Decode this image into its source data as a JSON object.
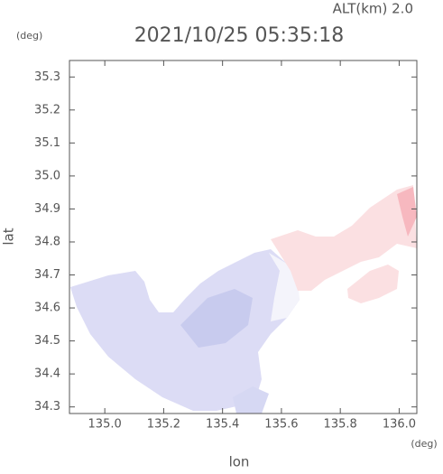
{
  "chart_data": {
    "type": "map",
    "title": "2021/10/25 05:35:18",
    "annotation": "ALT(km) 2.0",
    "y_unit": "(deg)",
    "x_unit": "(deg)",
    "xlabel": "lon",
    "ylabel": "lat",
    "xlim": [
      134.88,
      136.06
    ],
    "ylim": [
      34.28,
      35.35
    ],
    "xticks": [
      {
        "value": 135,
        "label": "135.0"
      },
      135.2,
      135.4,
      135.6,
      135.8,
      {
        "value": 136,
        "label": "136.0"
      }
    ],
    "yticks": [
      34.3,
      34.4,
      34.5,
      34.6,
      34.7,
      34.8,
      34.9,
      {
        "value": 35,
        "label": "35.0"
      },
      35.1,
      35.2,
      35.3
    ]
  }
}
